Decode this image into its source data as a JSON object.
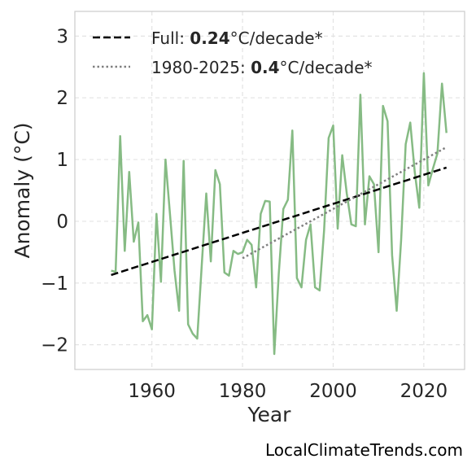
{
  "chart_data": {
    "type": "line",
    "xlabel": "Year",
    "ylabel": "Anomaly (°C)",
    "xlim": [
      1943,
      2029
    ],
    "ylim": [
      -2.4,
      3.4
    ],
    "xticks": [
      1960,
      1980,
      2000,
      2020
    ],
    "xtick_labels": [
      "1960",
      "1980",
      "2000",
      "2020"
    ],
    "yticks": [
      -2,
      -1,
      0,
      1,
      2,
      3
    ],
    "ytick_labels": [
      "−2",
      "−1",
      "0",
      "1",
      "2",
      "3"
    ],
    "grid": true,
    "legend_position": "top-left",
    "series": [
      {
        "kind": "anomaly",
        "color": "#86bb84",
        "x": [
          1951,
          1952,
          1953,
          1954,
          1955,
          1956,
          1957,
          1958,
          1959,
          1960,
          1961,
          1962,
          1963,
          1964,
          1965,
          1966,
          1967,
          1968,
          1969,
          1970,
          1971,
          1972,
          1973,
          1974,
          1975,
          1976,
          1977,
          1978,
          1979,
          1980,
          1981,
          1982,
          1983,
          1984,
          1985,
          1986,
          1987,
          1988,
          1989,
          1990,
          1991,
          1992,
          1993,
          1994,
          1995,
          1996,
          1997,
          1998,
          1999,
          2000,
          2001,
          2002,
          2003,
          2004,
          2005,
          2006,
          2007,
          2008,
          2009,
          2010,
          2011,
          2012,
          2013,
          2014,
          2015,
          2016,
          2017,
          2018,
          2019,
          2020,
          2021,
          2022,
          2023,
          2024,
          2025
        ],
        "y": [
          -0.8,
          -0.82,
          1.38,
          -0.48,
          0.8,
          -0.33,
          -0.02,
          -1.62,
          -1.52,
          -1.75,
          0.12,
          -0.98,
          1.0,
          0.1,
          -0.8,
          -1.45,
          0.98,
          -1.67,
          -1.82,
          -1.9,
          -0.7,
          0.45,
          -0.65,
          0.83,
          0.6,
          -0.83,
          -0.88,
          -0.48,
          -0.53,
          -0.5,
          -0.3,
          -0.38,
          -1.07,
          0.12,
          0.33,
          0.32,
          -2.15,
          -0.85,
          0.2,
          0.35,
          1.47,
          -0.92,
          -1.07,
          -0.3,
          -0.05,
          -1.07,
          -1.12,
          -0.15,
          1.35,
          1.55,
          -0.12,
          1.07,
          0.45,
          -0.05,
          -0.08,
          2.05,
          -0.05,
          0.73,
          0.6,
          -0.5,
          1.87,
          1.62,
          -0.55,
          -1.45,
          -0.3,
          1.25,
          1.6,
          0.8,
          0.22,
          2.4,
          0.58,
          0.85,
          1.1,
          2.23,
          1.43
        ]
      },
      {
        "kind": "trend-full",
        "name": "Full: 0.24°C/decade*",
        "color": "#000000",
        "x": [
          1951,
          2025
        ],
        "y": [
          -0.87,
          0.87
        ]
      },
      {
        "kind": "trend-recent",
        "name": "1980-2025: 0.4°C/decade*",
        "color": "#808080",
        "x": [
          1980,
          2025
        ],
        "y": [
          -0.6,
          1.2
        ]
      }
    ]
  },
  "legend": {
    "full_prefix": "Full: ",
    "full_value": "0.24",
    "full_suffix": "°C/decade*",
    "recent_prefix": "1980-2025: ",
    "recent_value": "0.4",
    "recent_suffix": "°C/decade*"
  },
  "watermark": "LocalClimateTrends.com"
}
